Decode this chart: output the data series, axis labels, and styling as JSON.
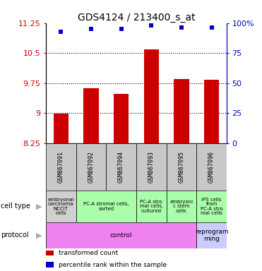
{
  "title": "GDS4124 / 213400_s_at",
  "samples": [
    "GSM867091",
    "GSM867092",
    "GSM867094",
    "GSM867093",
    "GSM867095",
    "GSM867096"
  ],
  "bar_values": [
    8.98,
    9.62,
    9.48,
    10.6,
    9.85,
    9.83
  ],
  "scatter_values": [
    93,
    95,
    95,
    98,
    96,
    96
  ],
  "ylim_left": [
    8.25,
    11.25
  ],
  "ylim_right": [
    0,
    100
  ],
  "yticks_left": [
    8.25,
    9.0,
    9.75,
    10.5,
    11.25
  ],
  "yticks_right": [
    0,
    25,
    50,
    75,
    100
  ],
  "ytick_labels_left": [
    "8.25",
    "9",
    "9.75",
    "10.5",
    "11.25"
  ],
  "ytick_labels_right": [
    "0",
    "25",
    "50",
    "75",
    "100%"
  ],
  "bar_color": "#cc0000",
  "scatter_color": "#0000cc",
  "bar_bottom": 8.25,
  "dotted_line_y": [
    9.0,
    9.75,
    10.5
  ],
  "cell_type_label": "cell type",
  "protocol_label": "protocol",
  "cell_types": [
    {
      "x": 0,
      "span": 1,
      "text": "embryonal\ncarcinoma\nNCCIT\ncells",
      "color": "#d0d0d0"
    },
    {
      "x": 1,
      "span": 2,
      "text": "PC-A stromal cells,\nsorted",
      "color": "#aaffaa"
    },
    {
      "x": 3,
      "span": 1,
      "text": "PC-A stro\nmal cells,\ncultured",
      "color": "#aaffaa"
    },
    {
      "x": 4,
      "span": 1,
      "text": "embryoni\nc stem\ncells",
      "color": "#aaffaa"
    },
    {
      "x": 5,
      "span": 1,
      "text": "iPS cells\nfrom\nPC-A stro\nmal cells",
      "color": "#aaffaa"
    }
  ],
  "protocols": [
    {
      "x": 0,
      "span": 5,
      "text": "control",
      "color": "#ee82ee"
    },
    {
      "x": 5,
      "span": 1,
      "text": "reprogram\nming",
      "color": "#ccccff"
    }
  ],
  "legend_bar_label": "transformed count",
  "legend_scatter_label": "percentile rank within the sample",
  "bg_color": "#ffffff",
  "plot_bg": "#ffffff",
  "title_fontsize": 10,
  "tick_fontsize": 8,
  "bar_width": 0.5,
  "sample_bg": "#c8c8c8",
  "label_arrow_color": "#999999"
}
